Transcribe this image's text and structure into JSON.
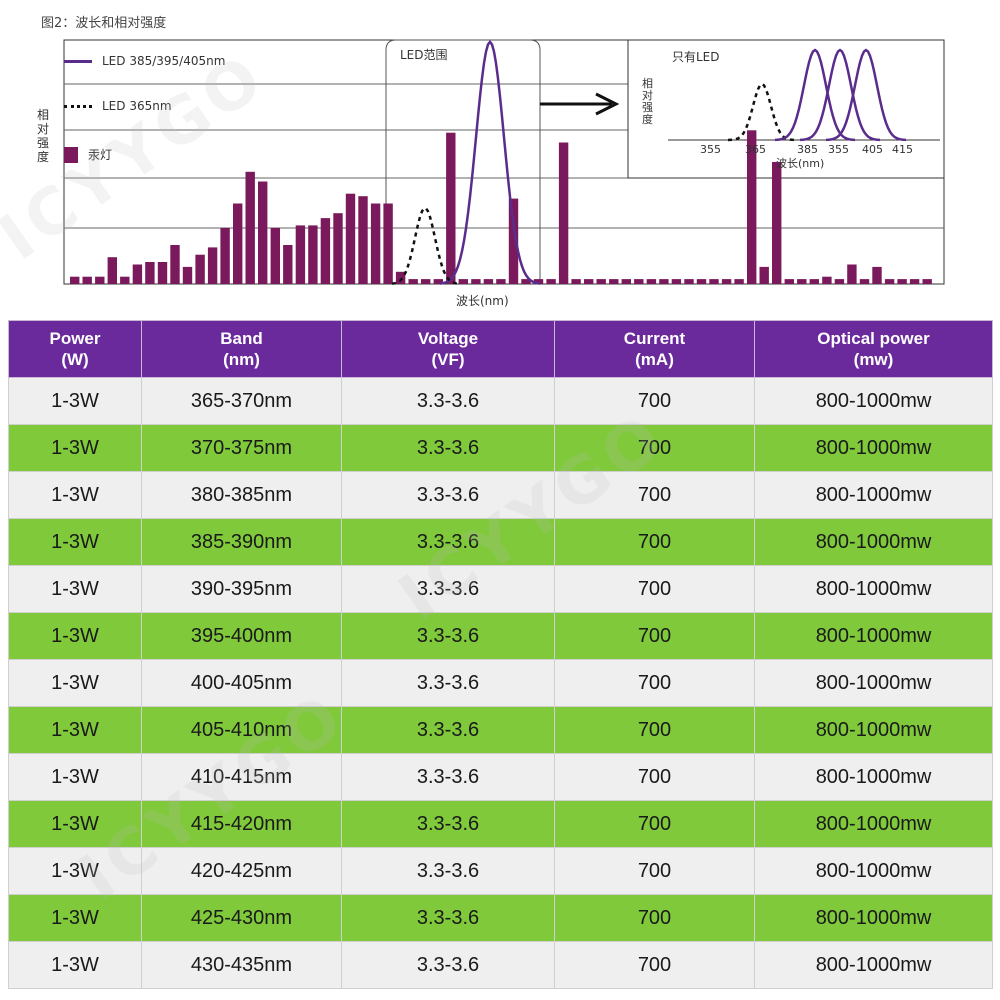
{
  "figure": {
    "caption": "图2：波长和相对强度",
    "legend": [
      {
        "label": "LED 385/395/405nm",
        "style": "line",
        "color": "#5a2c8c"
      },
      {
        "label": "LED 365nm",
        "style": "dotted",
        "color": "#111111"
      },
      {
        "label": "汞灯",
        "style": "bar",
        "color": "#7a1a5c"
      }
    ],
    "ylabel": "相对强度",
    "xlabel": "波长(nm)",
    "led_range_label": "LED范围",
    "mercury_bars": [
      0.03,
      0.03,
      0.03,
      0.11,
      0.03,
      0.08,
      0.09,
      0.09,
      0.16,
      0.07,
      0.12,
      0.15,
      0.23,
      0.33,
      0.46,
      0.42,
      0.23,
      0.16,
      0.24,
      0.24,
      0.27,
      0.29,
      0.37,
      0.36,
      0.33,
      0.33,
      0.05,
      0.02,
      0.02,
      0.02,
      0.62,
      0.02,
      0.02,
      0.02,
      0.02,
      0.35,
      0.02,
      0.02,
      0.02,
      0.58,
      0.02,
      0.02,
      0.02,
      0.02,
      0.02,
      0.02,
      0.02,
      0.02,
      0.02,
      0.02,
      0.02,
      0.02,
      0.02,
      0.02,
      0.63,
      0.07,
      0.5,
      0.02,
      0.02,
      0.02,
      0.03,
      0.02,
      0.08,
      0.02,
      0.07,
      0.02,
      0.02,
      0.02,
      0.02
    ],
    "inset": {
      "title": "只有LED",
      "ylabel": "相对强度",
      "xlabel": "波长(nm)",
      "ticks": [
        "355",
        "365",
        "385",
        "355",
        "405",
        "415"
      ]
    }
  },
  "table": {
    "headers": [
      [
        "Power",
        "(W)"
      ],
      [
        "Band",
        "(nm)"
      ],
      [
        "Voltage",
        "(VF)"
      ],
      [
        "Current",
        "(mA)"
      ],
      [
        "Optical power",
        "(mw)"
      ]
    ],
    "rows": [
      [
        "1-3W",
        "365-370nm",
        "3.3-3.6",
        "700",
        "800-1000mw"
      ],
      [
        "1-3W",
        "370-375nm",
        "3.3-3.6",
        "700",
        "800-1000mw"
      ],
      [
        "1-3W",
        "380-385nm",
        "3.3-3.6",
        "700",
        "800-1000mw"
      ],
      [
        "1-3W",
        "385-390nm",
        "3.3-3.6",
        "700",
        "800-1000mw"
      ],
      [
        "1-3W",
        "390-395nm",
        "3.3-3.6",
        "700",
        "800-1000mw"
      ],
      [
        "1-3W",
        "395-400nm",
        "3.3-3.6",
        "700",
        "800-1000mw"
      ],
      [
        "1-3W",
        "400-405nm",
        "3.3-3.6",
        "700",
        "800-1000mw"
      ],
      [
        "1-3W",
        "405-410nm",
        "3.3-3.6",
        "700",
        "800-1000mw"
      ],
      [
        "1-3W",
        "410-415nm",
        "3.3-3.6",
        "700",
        "800-1000mw"
      ],
      [
        "1-3W",
        "415-420nm",
        "3.3-3.6",
        "700",
        "800-1000mw"
      ],
      [
        "1-3W",
        "420-425nm",
        "3.3-3.6",
        "700",
        "800-1000mw"
      ],
      [
        "1-3W",
        "425-430nm",
        "3.3-3.6",
        "700",
        "800-1000mw"
      ],
      [
        "1-3W",
        "430-435nm",
        "3.3-3.6",
        "700",
        "800-1000mw"
      ]
    ],
    "colors": {
      "header": "#6a2a9c",
      "row_light": "#efefef",
      "row_green": "#7fc93a"
    }
  },
  "watermark": "ICYYGO"
}
